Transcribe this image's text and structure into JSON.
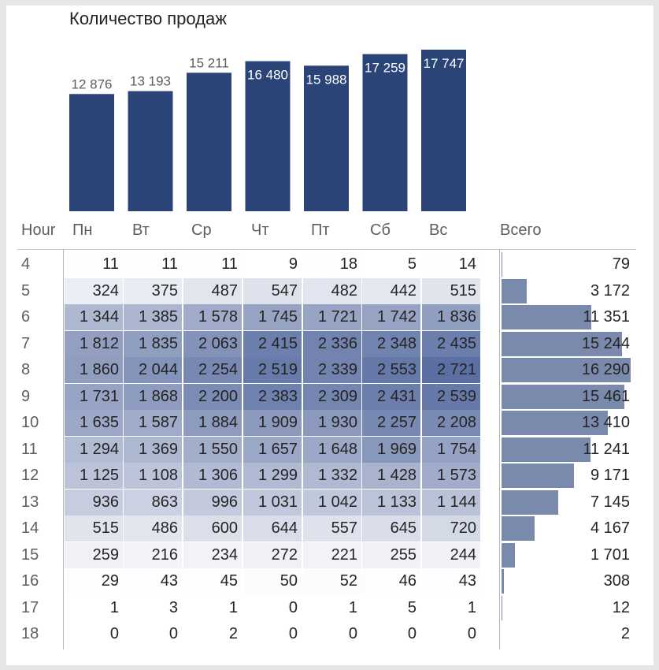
{
  "chart_data": [
    {
      "type": "bar",
      "title": "Количество продаж",
      "categories": [
        "Пн",
        "Вт",
        "Ср",
        "Чт",
        "Пт",
        "Сб",
        "Вс"
      ],
      "values": [
        12876,
        13193,
        15211,
        16480,
        15988,
        17259,
        17747
      ],
      "value_labels": [
        "12 876",
        "13 193",
        "15 211",
        "16 480",
        "15 988",
        "17 259",
        "17 747"
      ],
      "bar_color": "#2a4478",
      "ylim": [
        0,
        17747
      ],
      "grid": false,
      "legend": "none"
    },
    {
      "type": "heatmap",
      "row_header": "Hour",
      "total_header": "Всего",
      "columns": [
        "Пн",
        "Вт",
        "Ср",
        "Чт",
        "Пт",
        "Сб",
        "Вс"
      ],
      "low_color": "#ffffff",
      "high_color": "#5b6fa2",
      "total_bar_color": "#7a8aac",
      "rows": [
        {
          "hour": "4",
          "values": [
            11,
            11,
            11,
            9,
            18,
            5,
            14
          ],
          "labels": [
            "11",
            "11",
            "11",
            "9",
            "18",
            "5",
            "14"
          ],
          "total": 79,
          "total_label": "79"
        },
        {
          "hour": "5",
          "values": [
            324,
            375,
            487,
            547,
            482,
            442,
            515
          ],
          "labels": [
            "324",
            "375",
            "487",
            "547",
            "482",
            "442",
            "515"
          ],
          "total": 3172,
          "total_label": "3 172"
        },
        {
          "hour": "6",
          "values": [
            1344,
            1385,
            1578,
            1745,
            1721,
            1742,
            1836
          ],
          "labels": [
            "1 344",
            "1 385",
            "1 578",
            "1 745",
            "1 721",
            "1 742",
            "1 836"
          ],
          "total": 11351,
          "total_label": "11 351"
        },
        {
          "hour": "7",
          "values": [
            1812,
            1835,
            2063,
            2415,
            2336,
            2348,
            2435
          ],
          "labels": [
            "1 812",
            "1 835",
            "2 063",
            "2 415",
            "2 336",
            "2 348",
            "2 435"
          ],
          "total": 15244,
          "total_label": "15 244"
        },
        {
          "hour": "8",
          "values": [
            1860,
            2044,
            2254,
            2519,
            2339,
            2553,
            2721
          ],
          "labels": [
            "1 860",
            "2 044",
            "2 254",
            "2 519",
            "2 339",
            "2 553",
            "2 721"
          ],
          "total": 16290,
          "total_label": "16 290"
        },
        {
          "hour": "9",
          "values": [
            1731,
            1868,
            2200,
            2383,
            2309,
            2431,
            2539
          ],
          "labels": [
            "1 731",
            "1 868",
            "2 200",
            "2 383",
            "2 309",
            "2 431",
            "2 539"
          ],
          "total": 15461,
          "total_label": "15 461"
        },
        {
          "hour": "10",
          "values": [
            1635,
            1587,
            1884,
            1909,
            1930,
            2257,
            2208
          ],
          "labels": [
            "1 635",
            "1 587",
            "1 884",
            "1 909",
            "1 930",
            "2 257",
            "2 208"
          ],
          "total": 13410,
          "total_label": "13 410"
        },
        {
          "hour": "11",
          "values": [
            1294,
            1369,
            1550,
            1657,
            1648,
            1969,
            1754
          ],
          "labels": [
            "1 294",
            "1 369",
            "1 550",
            "1 657",
            "1 648",
            "1 969",
            "1 754"
          ],
          "total": 11241,
          "total_label": "11 241"
        },
        {
          "hour": "12",
          "values": [
            1125,
            1108,
            1306,
            1299,
            1332,
            1428,
            1573
          ],
          "labels": [
            "1 125",
            "1 108",
            "1 306",
            "1 299",
            "1 332",
            "1 428",
            "1 573"
          ],
          "total": 9171,
          "total_label": "9 171"
        },
        {
          "hour": "13",
          "values": [
            936,
            863,
            996,
            1031,
            1042,
            1133,
            1144
          ],
          "labels": [
            "936",
            "863",
            "996",
            "1 031",
            "1 042",
            "1 133",
            "1 144"
          ],
          "total": 7145,
          "total_label": "7 145"
        },
        {
          "hour": "14",
          "values": [
            515,
            486,
            600,
            644,
            557,
            645,
            720
          ],
          "labels": [
            "515",
            "486",
            "600",
            "644",
            "557",
            "645",
            "720"
          ],
          "total": 4167,
          "total_label": "4 167"
        },
        {
          "hour": "15",
          "values": [
            259,
            216,
            234,
            272,
            221,
            255,
            244
          ],
          "labels": [
            "259",
            "216",
            "234",
            "272",
            "221",
            "255",
            "244"
          ],
          "total": 1701,
          "total_label": "1 701"
        },
        {
          "hour": "16",
          "values": [
            29,
            43,
            45,
            50,
            52,
            46,
            43
          ],
          "labels": [
            "29",
            "43",
            "45",
            "50",
            "52",
            "46",
            "43"
          ],
          "total": 308,
          "total_label": "308"
        },
        {
          "hour": "17",
          "values": [
            1,
            3,
            1,
            0,
            1,
            5,
            1
          ],
          "labels": [
            "1",
            "3",
            "1",
            "0",
            "1",
            "5",
            "1"
          ],
          "total": 12,
          "total_label": "12"
        },
        {
          "hour": "18",
          "values": [
            0,
            0,
            2,
            0,
            0,
            0,
            0
          ],
          "labels": [
            "0",
            "0",
            "2",
            "0",
            "0",
            "0",
            "0"
          ],
          "total": 2,
          "total_label": "2"
        }
      ]
    }
  ]
}
